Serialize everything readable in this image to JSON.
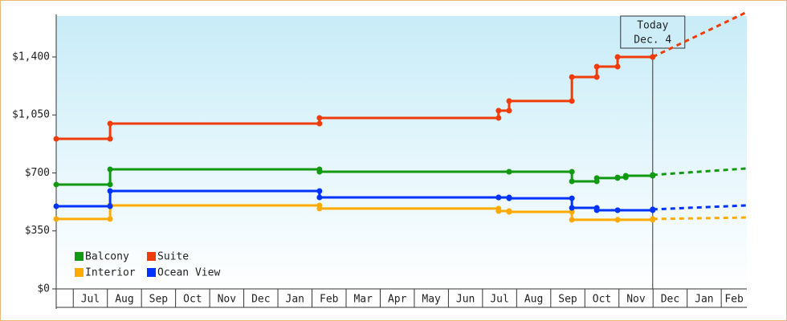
{
  "chart_data": {
    "type": "step",
    "xlim": [
      -0.5,
      19.75
    ],
    "xticks": [
      {
        "value": 0.5,
        "label": "Jul"
      },
      {
        "value": 1.5,
        "label": "Aug"
      },
      {
        "value": 2.5,
        "label": "Sep"
      },
      {
        "value": 3.5,
        "label": "Oct"
      },
      {
        "value": 4.5,
        "label": "Nov"
      },
      {
        "value": 5.5,
        "label": "Dec"
      },
      {
        "value": 6.5,
        "label": "Jan"
      },
      {
        "value": 7.5,
        "label": "Feb"
      },
      {
        "value": 8.5,
        "label": "Mar"
      },
      {
        "value": 9.5,
        "label": "Apr"
      },
      {
        "value": 10.5,
        "label": "May"
      },
      {
        "value": 11.5,
        "label": "Jun"
      },
      {
        "value": 12.5,
        "label": "Jul"
      },
      {
        "value": 13.5,
        "label": "Aug"
      },
      {
        "value": 14.5,
        "label": "Sep"
      },
      {
        "value": 15.5,
        "label": "Oct"
      },
      {
        "value": 16.5,
        "label": "Nov"
      },
      {
        "value": 17.5,
        "label": "Dec"
      },
      {
        "value": 18.5,
        "label": "Jan"
      },
      {
        "value": 19.5,
        "label": "Feb"
      }
    ],
    "ylim": [
      0,
      1647
    ],
    "yticks": [
      {
        "value": 0,
        "label": "$0"
      },
      {
        "value": 350,
        "label": "$350"
      },
      {
        "value": 700,
        "label": "$700"
      },
      {
        "value": 1050,
        "label": "$1,050"
      },
      {
        "value": 1400,
        "label": "$1,400"
      }
    ],
    "annotation": {
      "lines": [
        "Today",
        "Dec. 4"
      ],
      "x": 16.99
    },
    "series": [
      {
        "name": "Balcony",
        "color": "#119911",
        "x": [
          -0.5,
          1.08,
          7.22,
          12.78,
          14.62,
          15.35,
          15.96,
          16.2,
          16.99
        ],
        "values": [
          630,
          722,
          707,
          707,
          649,
          669,
          673,
          683,
          688
        ],
        "projection": {
          "x": [
            16.99,
            19.75
          ],
          "values": [
            688,
            727
          ]
        }
      },
      {
        "name": "Suite",
        "color": "#f03c0a",
        "x": [
          -0.5,
          1.08,
          7.22,
          12.47,
          12.78,
          14.62,
          15.35,
          15.96,
          16.99
        ],
        "values": [
          906,
          998,
          1032,
          1076,
          1134,
          1279,
          1342,
          1400,
          1400
        ],
        "projection": {
          "x": [
            16.99,
            19.75
          ],
          "values": [
            1400,
            1671
          ]
        }
      },
      {
        "name": "Interior",
        "color": "#ffaa00",
        "x": [
          -0.5,
          1.08,
          7.22,
          12.47,
          12.78,
          14.62,
          15.96,
          16.99
        ],
        "values": [
          422,
          504,
          485,
          470,
          465,
          417,
          417,
          422
        ],
        "projection": {
          "x": [
            16.99,
            19.75
          ],
          "values": [
            422,
            431
          ]
        }
      },
      {
        "name": "Ocean View",
        "color": "#0033ff",
        "x": [
          -0.5,
          1.08,
          7.22,
          12.47,
          12.78,
          14.62,
          15.35,
          15.96,
          16.99
        ],
        "values": [
          499,
          591,
          552,
          552,
          547,
          489,
          475,
          475,
          480
        ],
        "projection": {
          "x": [
            16.99,
            19.75
          ],
          "values": [
            480,
            504
          ]
        }
      }
    ]
  }
}
